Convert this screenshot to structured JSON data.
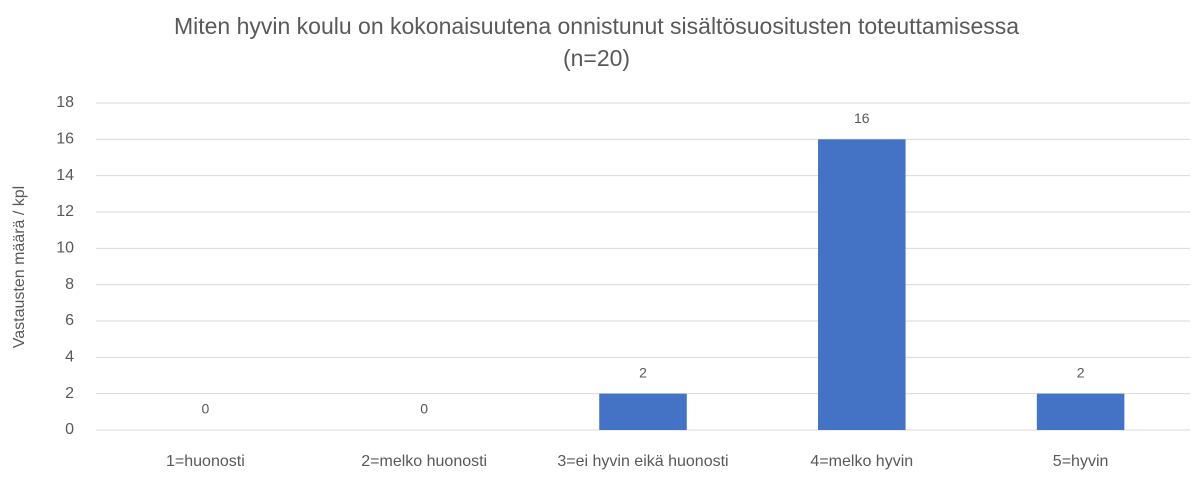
{
  "chart_data": {
    "type": "bar",
    "title": "Miten hyvin koulu on kokonaisuutena onnistunut sisältösuositusten toteuttamisessa (n=20)",
    "y_label": "Vastausten määrä / kpl",
    "categories": [
      "1=huonosti",
      "2=melko huonosti",
      "3=ei hyvin eikä huonosti",
      "4=melko hyvin",
      "5=hyvin"
    ],
    "values": [
      0,
      0,
      2,
      16,
      2
    ],
    "color": "#4472c4",
    "ylim": [
      0,
      18
    ],
    "yticks": [
      0,
      2,
      4,
      6,
      8,
      10,
      12,
      14,
      16,
      18
    ],
    "grid": true
  }
}
